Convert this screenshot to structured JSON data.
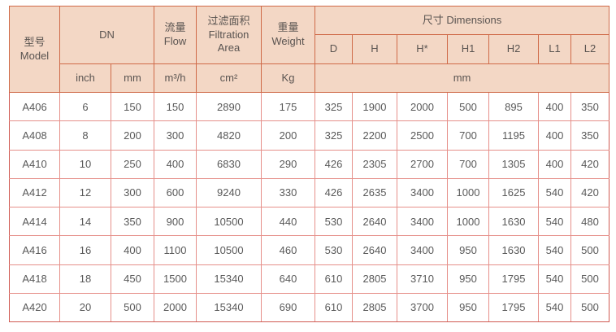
{
  "table": {
    "colors": {
      "header_bg": "#f3d7c5",
      "header_border": "#cf6a48",
      "body_border": "#e6908a",
      "outer_border": "#d05a52",
      "header_text": "#5a5451",
      "body_text": "#595959"
    },
    "header": {
      "model": "型号\nModel",
      "dn": "DN",
      "flow": "流量\nFlow",
      "filtration_area": "过滤面积\nFiltration\nArea",
      "weight": "重量\nWeight",
      "dimensions": "尺寸 Dimensions",
      "dim_cols": [
        "D",
        "H",
        "H*",
        "H1",
        "H2",
        "L1",
        "L2"
      ],
      "units": {
        "inch": "inch",
        "mm": "mm",
        "flow": "m³/h",
        "area": "cm²",
        "weight": "Kg",
        "dims": "mm"
      }
    },
    "row_keys": [
      "model",
      "inch",
      "mm",
      "flow",
      "area",
      "weight",
      "d",
      "h",
      "h_star",
      "h1",
      "h2",
      "l1",
      "l2"
    ],
    "rows": [
      {
        "model": "A406",
        "inch": "6",
        "mm": "150",
        "flow": "150",
        "area": "2890",
        "weight": "175",
        "d": "325",
        "h": "1900",
        "h_star": "2000",
        "h1": "500",
        "h2": "895",
        "l1": "400",
        "l2": "350"
      },
      {
        "model": "A408",
        "inch": "8",
        "mm": "200",
        "flow": "300",
        "area": "4820",
        "weight": "200",
        "d": "325",
        "h": "2200",
        "h_star": "2500",
        "h1": "700",
        "h2": "1195",
        "l1": "400",
        "l2": "350"
      },
      {
        "model": "A410",
        "inch": "10",
        "mm": "250",
        "flow": "400",
        "area": "6830",
        "weight": "290",
        "d": "426",
        "h": "2305",
        "h_star": "2700",
        "h1": "700",
        "h2": "1305",
        "l1": "400",
        "l2": "420"
      },
      {
        "model": "A412",
        "inch": "12",
        "mm": "300",
        "flow": "600",
        "area": "9240",
        "weight": "330",
        "d": "426",
        "h": "2635",
        "h_star": "3400",
        "h1": "1000",
        "h2": "1625",
        "l1": "540",
        "l2": "420"
      },
      {
        "model": "A414",
        "inch": "14",
        "mm": "350",
        "flow": "900",
        "area": "10500",
        "weight": "440",
        "d": "530",
        "h": "2640",
        "h_star": "3400",
        "h1": "1000",
        "h2": "1630",
        "l1": "540",
        "l2": "480"
      },
      {
        "model": "A416",
        "inch": "16",
        "mm": "400",
        "flow": "1100",
        "area": "10500",
        "weight": "460",
        "d": "530",
        "h": "2640",
        "h_star": "3400",
        "h1": "950",
        "h2": "1630",
        "l1": "540",
        "l2": "500"
      },
      {
        "model": "A418",
        "inch": "18",
        "mm": "450",
        "flow": "1500",
        "area": "15340",
        "weight": "640",
        "d": "610",
        "h": "2805",
        "h_star": "3710",
        "h1": "950",
        "h2": "1795",
        "l1": "540",
        "l2": "500"
      },
      {
        "model": "A420",
        "inch": "20",
        "mm": "500",
        "flow": "2000",
        "area": "15340",
        "weight": "690",
        "d": "610",
        "h": "2805",
        "h_star": "3700",
        "h1": "950",
        "h2": "1795",
        "l1": "540",
        "l2": "500"
      }
    ]
  }
}
